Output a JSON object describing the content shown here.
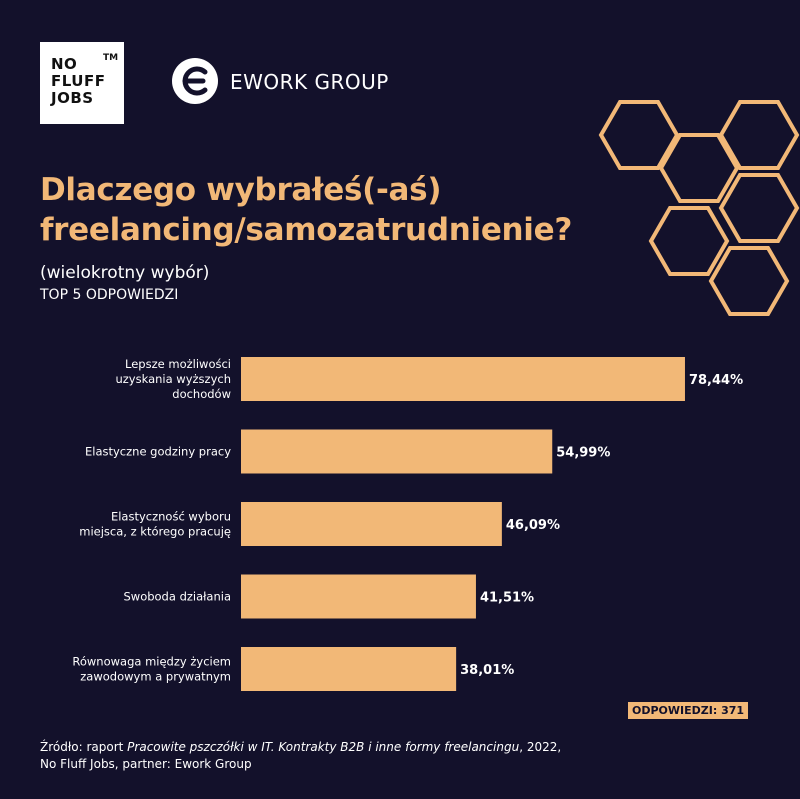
{
  "logos": {
    "nofluff_line1": "NO",
    "nofluff_line2": "FLUFF",
    "nofluff_line3": "JOBS",
    "nofluff_tm": "TM",
    "ework_name": "EWORK GROUP"
  },
  "colors": {
    "background": "#13112b",
    "accent": "#f2b877",
    "text": "#ffffff"
  },
  "chart_data": {
    "type": "bar",
    "orientation": "horizontal",
    "title": "Dlaczego wybrałeś(-aś) freelancing/samozatrudnienie?",
    "subtitle": "(wielokrotny wybór)",
    "subtitle2": "TOP 5 ODPOWIEDZI",
    "categories": [
      [
        "Lepsze możliwości",
        "uzyskania wyższych",
        "dochodów"
      ],
      [
        "Elastyczne godziny pracy"
      ],
      [
        "Elastyczność wyboru",
        "miejsca, z którego pracuję"
      ],
      [
        "Swoboda działania"
      ],
      [
        "Równowaga między życiem",
        "zawodowym a prywatnym"
      ]
    ],
    "values": [
      78.44,
      54.99,
      46.09,
      41.51,
      38.01
    ],
    "value_labels": [
      "78,44%",
      "54,99%",
      "46,09%",
      "41,51%",
      "38,01%"
    ],
    "xlim": [
      0,
      100
    ],
    "grid": false,
    "legend": "none"
  },
  "badge": "ODPOWIEDZI: 371",
  "source": {
    "prefix": "Źródło: raport ",
    "italic": "Pracowite pszczółki w IT. Kontrakty B2B i inne formy freelancingu",
    "suffix": ", 2022,",
    "line2": "No Fluff Jobs, partner: Ework Group"
  }
}
